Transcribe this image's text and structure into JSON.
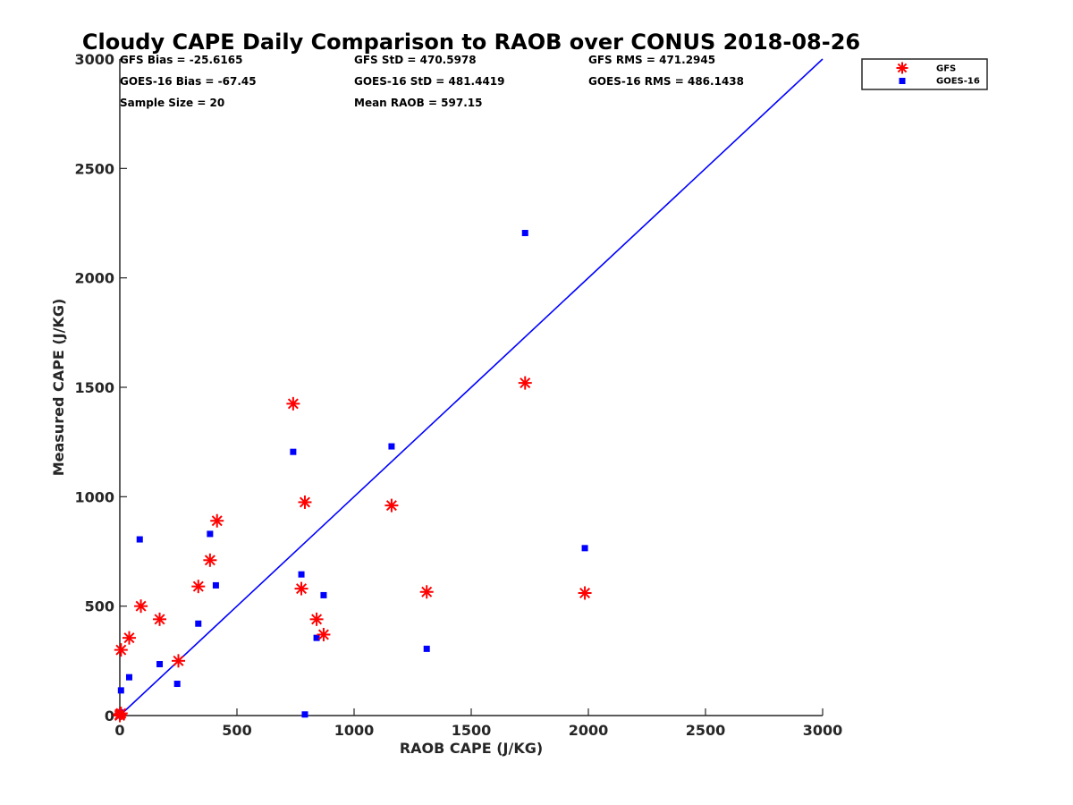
{
  "chart_data": {
    "type": "scatter",
    "title": "Cloudy CAPE Daily Comparison to RAOB over CONUS 2018-08-26",
    "xlabel": "RAOB CAPE (J/KG)",
    "ylabel": "Measured CAPE (J/KG)",
    "xlim": [
      0,
      3000
    ],
    "ylim": [
      0,
      3000
    ],
    "xticks": [
      0,
      500,
      1000,
      1500,
      2000,
      2500,
      3000
    ],
    "yticks": [
      0,
      500,
      1000,
      1500,
      2000,
      2500,
      3000
    ],
    "grid": false,
    "legend_position": "outside-top-right",
    "stats": [
      [
        "GFS Bias = -25.6165",
        "GFS StD = 470.5978",
        "GFS RMS = 471.2945"
      ],
      [
        "GOES-16 Bias = -67.45",
        "GOES-16 StD = 481.4419",
        "GOES-16 RMS = 486.1438"
      ],
      [
        "Sample Size = 20",
        "Mean RAOB = 597.15",
        ""
      ]
    ],
    "reference_line": {
      "points": [
        [
          0,
          0
        ],
        [
          3000,
          3000
        ]
      ],
      "color": "#0000ff"
    },
    "series": [
      {
        "name": "GFS",
        "marker": "asterisk",
        "color": "#ff0000",
        "points": [
          [
            0,
            0
          ],
          [
            5,
            300
          ],
          [
            40,
            355
          ],
          [
            90,
            500
          ],
          [
            170,
            440
          ],
          [
            250,
            250
          ],
          [
            335,
            590
          ],
          [
            385,
            710
          ],
          [
            415,
            890
          ],
          [
            740,
            1425
          ],
          [
            775,
            580
          ],
          [
            790,
            975
          ],
          [
            840,
            440
          ],
          [
            870,
            370
          ],
          [
            1160,
            960
          ],
          [
            1310,
            565
          ],
          [
            1730,
            1520
          ],
          [
            1985,
            560
          ],
          [
            5,
            10
          ],
          [
            0,
            5
          ]
        ]
      },
      {
        "name": "GOES-16",
        "marker": "square",
        "color": "#0000ff",
        "points": [
          [
            0,
            15
          ],
          [
            5,
            10
          ],
          [
            5,
            115
          ],
          [
            40,
            175
          ],
          [
            85,
            805
          ],
          [
            170,
            235
          ],
          [
            245,
            145
          ],
          [
            335,
            420
          ],
          [
            385,
            830
          ],
          [
            410,
            595
          ],
          [
            740,
            1205
          ],
          [
            775,
            645
          ],
          [
            790,
            5
          ],
          [
            840,
            355
          ],
          [
            870,
            550
          ],
          [
            1160,
            1230
          ],
          [
            1310,
            305
          ],
          [
            1730,
            2205
          ],
          [
            1985,
            765
          ],
          [
            0,
            0
          ]
        ]
      }
    ]
  }
}
